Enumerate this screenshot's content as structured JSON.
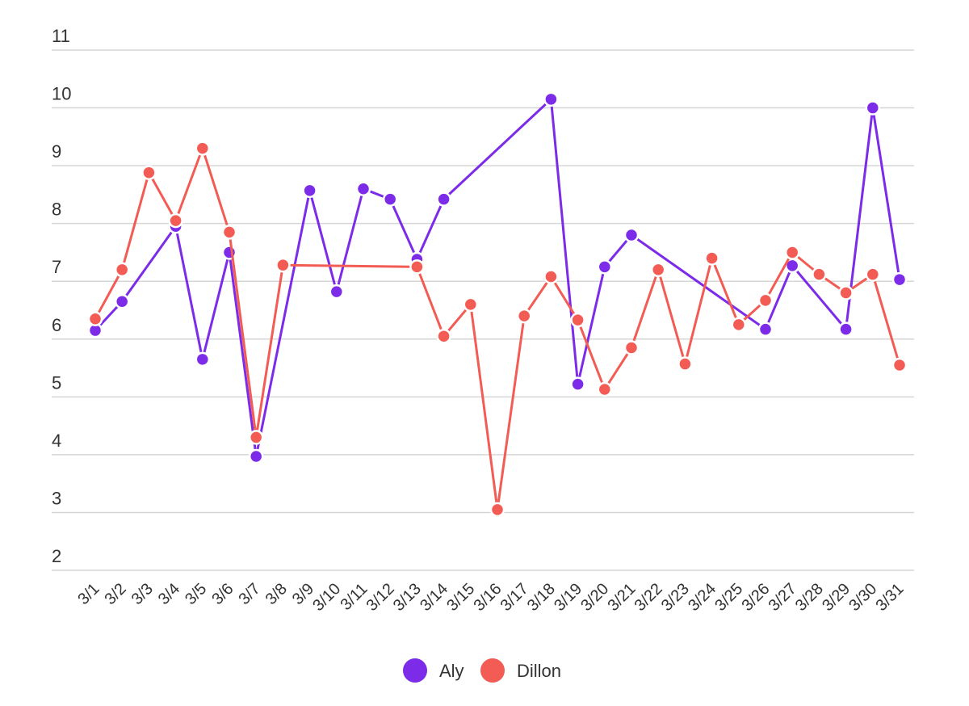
{
  "chart_data": {
    "type": "line",
    "title": "",
    "xlabel": "",
    "ylabel": "",
    "ylim": [
      2,
      11
    ],
    "yticks": [
      "2",
      "3",
      "4",
      "5",
      "6",
      "7",
      "8",
      "9",
      "10",
      "11"
    ],
    "grid": true,
    "legend_position": "bottom-center",
    "categories": [
      "3/1",
      "3/2",
      "3/3",
      "3/4",
      "3/5",
      "3/6",
      "3/7",
      "3/8",
      "3/9",
      "3/10",
      "3/11",
      "3/12",
      "3/13",
      "3/14",
      "3/15",
      "3/16",
      "3/17",
      "3/18",
      "3/19",
      "3/20",
      "3/21",
      "3/22",
      "3/23",
      "3/24",
      "3/25",
      "3/26",
      "3/27",
      "3/28",
      "3/29",
      "3/30",
      "3/31"
    ],
    "series": [
      {
        "name": "Aly",
        "color": "#7c2ce8",
        "values": [
          6.15,
          6.65,
          null,
          7.95,
          5.65,
          7.5,
          3.97,
          null,
          8.57,
          6.82,
          8.6,
          8.42,
          7.38,
          8.42,
          null,
          null,
          null,
          10.15,
          5.22,
          7.25,
          7.8,
          null,
          null,
          null,
          null,
          6.17,
          7.27,
          null,
          6.17,
          10.0,
          7.03
        ]
      },
      {
        "name": "Dillon",
        "color": "#f25c54",
        "values": [
          6.35,
          7.2,
          8.88,
          8.05,
          9.3,
          7.85,
          4.3,
          7.28,
          null,
          null,
          null,
          null,
          7.25,
          6.05,
          6.6,
          3.05,
          6.4,
          7.08,
          6.33,
          5.13,
          5.85,
          7.2,
          5.57,
          7.4,
          6.25,
          6.67,
          7.5,
          7.12,
          6.8,
          7.12,
          5.55
        ]
      }
    ]
  }
}
